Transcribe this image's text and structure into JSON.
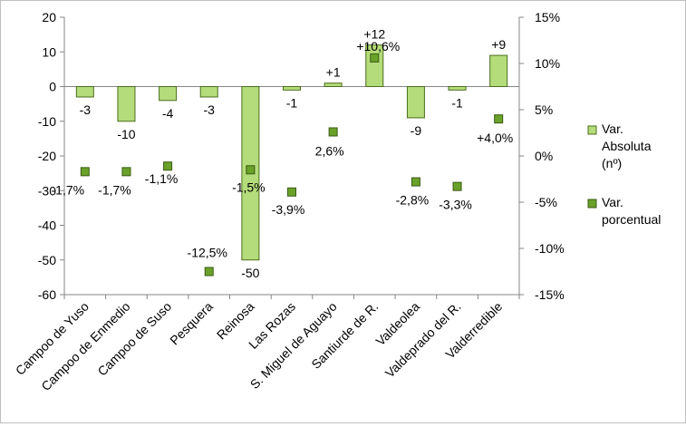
{
  "chart_data": {
    "type": "bar",
    "categories": [
      "Campoo de Yuso",
      "Campoo de Enmedio",
      "Campoo de Suso",
      "Pesquera",
      "Reinosa",
      "Las Rozas",
      "S. Miguel de Aguayo",
      "Santiurde de R.",
      "Valdeolea",
      "Valdeprado del R.",
      "Valderredible"
    ],
    "series": [
      {
        "name": "Var. Absoluta (nº)",
        "kind": "bar",
        "axis": "left",
        "color": "#b5dc7a",
        "stroke": "#4a6d1e",
        "values": [
          -3,
          -10,
          -4,
          -3,
          -50,
          -1,
          1,
          12,
          -9,
          -1,
          9
        ],
        "labels": [
          "-3",
          "-10",
          "-4",
          "-3",
          "-50",
          "-1",
          "+1",
          "+12",
          "-9",
          "-1",
          "+9"
        ]
      },
      {
        "name": "Var. porcentual",
        "kind": "marker",
        "axis": "right",
        "color": "#6aa229",
        "stroke": "#3a5a14",
        "values": [
          -1.7,
          -1.7,
          -1.1,
          -12.5,
          -1.5,
          -3.9,
          2.6,
          10.6,
          -2.8,
          -3.3,
          4.0
        ],
        "labels": [
          "-1,7%",
          "-1,7%",
          "-1,1%",
          "-12,5%",
          "-1,5%",
          "-3,9%",
          "2,6%",
          "+10,6%",
          "-2,8%",
          "-3,3%",
          "+4,0%"
        ]
      }
    ],
    "y_left": {
      "min": -60,
      "max": 20,
      "step": 10,
      "ticks": [
        "20",
        "10",
        "0",
        "-10",
        "-20",
        "-30",
        "-40",
        "-50",
        "-60"
      ]
    },
    "y_right": {
      "min": -15,
      "max": 15,
      "step": 5,
      "ticks": [
        "15%",
        "10%",
        "5%",
        "0%",
        "-5%",
        "-10%",
        "-15%"
      ]
    },
    "grid": false,
    "legend_placement": "right",
    "legend": [
      {
        "lines": [
          "Var.",
          "Absoluta",
          "(nº)"
        ],
        "color": "#b5dc7a"
      },
      {
        "lines": [
          "Var.",
          "porcentual"
        ],
        "color": "#6aa229"
      }
    ]
  }
}
